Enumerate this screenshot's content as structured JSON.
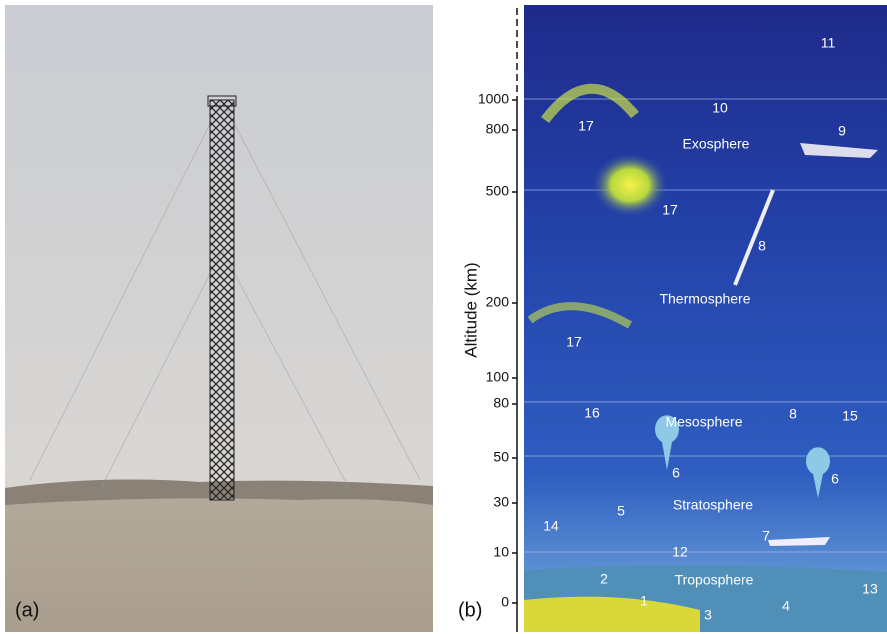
{
  "panel_a": {
    "label": "(a)"
  },
  "panel_b": {
    "label": "(b)",
    "axis_label": "Altitude (km)",
    "axis_ticks": [
      0,
      10,
      30,
      50,
      80,
      100,
      200,
      500,
      800,
      1000
    ],
    "layers": [
      "Exosphere",
      "Thermosphere",
      "Mesosphere",
      "Stratosphere",
      "Troposphere"
    ],
    "markers": [
      "17",
      "10",
      "11",
      "9",
      "17",
      "8",
      "17",
      "16",
      "8",
      "15",
      "6",
      "6",
      "14",
      "5",
      "7",
      "12",
      "2",
      "13",
      "1",
      "3",
      "4"
    ]
  }
}
